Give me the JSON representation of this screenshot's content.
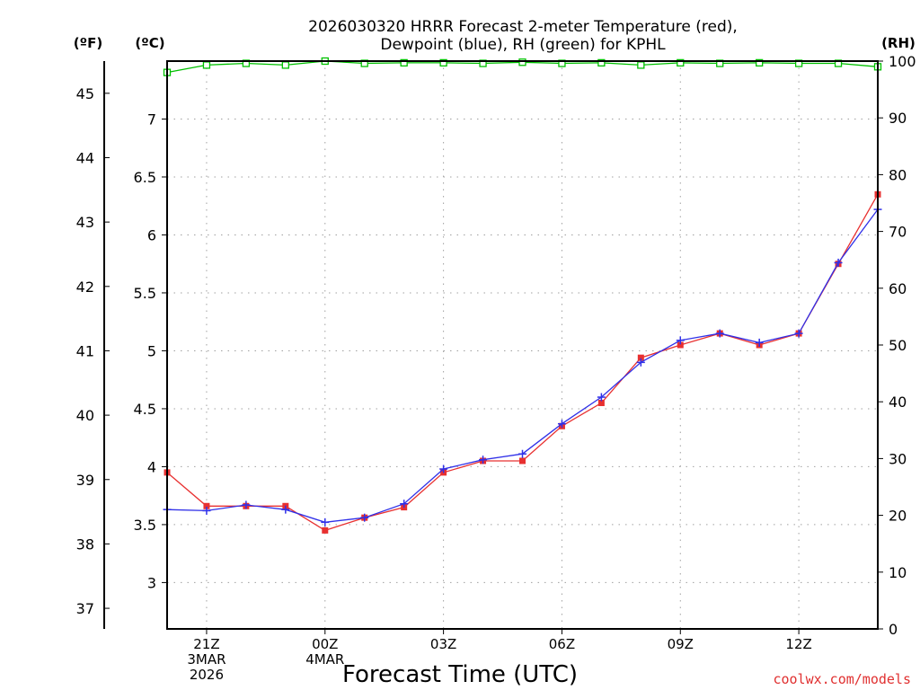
{
  "chart_data": {
    "type": "line",
    "title": [
      "2026030320 HRRR Forecast 2-meter Temperature (red),",
      "Dewpoint (blue), RH (green) for KPHL"
    ],
    "xlabel": "Forecast Time (UTC)",
    "units": {
      "fahrenheit": "(ºF)",
      "celsius": "(ºC)",
      "rh": "(RH)"
    },
    "credit": "coolwx.com/models",
    "x_hours": [
      20,
      21,
      22,
      23,
      24,
      25,
      26,
      27,
      28,
      29,
      30,
      31,
      32,
      33,
      34,
      35,
      36,
      37,
      38
    ],
    "x_range": [
      20,
      38
    ],
    "x_ticks": [
      {
        "hour": 21,
        "lines": [
          "21Z",
          "3MAR",
          "2026"
        ]
      },
      {
        "hour": 24,
        "lines": [
          "00Z",
          "4MAR"
        ]
      },
      {
        "hour": 27,
        "lines": [
          "03Z"
        ]
      },
      {
        "hour": 30,
        "lines": [
          "06Z"
        ]
      },
      {
        "hour": 33,
        "lines": [
          "09Z"
        ]
      },
      {
        "hour": 36,
        "lines": [
          "12Z"
        ]
      }
    ],
    "y_celsius": {
      "range": [
        2.6,
        7.5
      ],
      "ticks": [
        "3",
        "3.5",
        "4",
        "4.5",
        "5",
        "5.5",
        "6",
        "6.5",
        "7"
      ]
    },
    "y_fahrenheit": {
      "ticks": [
        "37",
        "38",
        "39",
        "40",
        "41",
        "42",
        "43",
        "44",
        "45"
      ]
    },
    "y_rh": {
      "range": [
        0,
        100
      ],
      "ticks": [
        "0",
        "10",
        "20",
        "30",
        "40",
        "50",
        "60",
        "70",
        "80",
        "90",
        "100"
      ]
    },
    "grid": true,
    "colors": {
      "temperature": "#e83030",
      "dewpoint": "#3030e8",
      "rh": "#00c000"
    },
    "series": [
      {
        "name": "Temperature",
        "unit": "C",
        "marker": "square",
        "values": [
          3.95,
          3.66,
          3.66,
          3.66,
          3.45,
          3.56,
          3.65,
          3.95,
          4.05,
          4.05,
          4.35,
          4.55,
          4.94,
          5.05,
          5.15,
          5.05,
          5.15,
          5.75,
          6.35
        ]
      },
      {
        "name": "Dewpoint",
        "unit": "C",
        "marker": "plus",
        "values": [
          3.63,
          3.62,
          3.67,
          3.63,
          3.52,
          3.56,
          3.68,
          3.98,
          4.06,
          4.11,
          4.37,
          4.6,
          4.9,
          5.09,
          5.15,
          5.07,
          5.15,
          5.76,
          6.22
        ]
      },
      {
        "name": "RH",
        "unit": "%",
        "marker": "open-square",
        "values": [
          98,
          99.3,
          99.6,
          99.3,
          100,
          99.6,
          99.7,
          99.7,
          99.6,
          99.8,
          99.6,
          99.7,
          99.3,
          99.7,
          99.6,
          99.7,
          99.6,
          99.6,
          99
        ]
      }
    ]
  }
}
